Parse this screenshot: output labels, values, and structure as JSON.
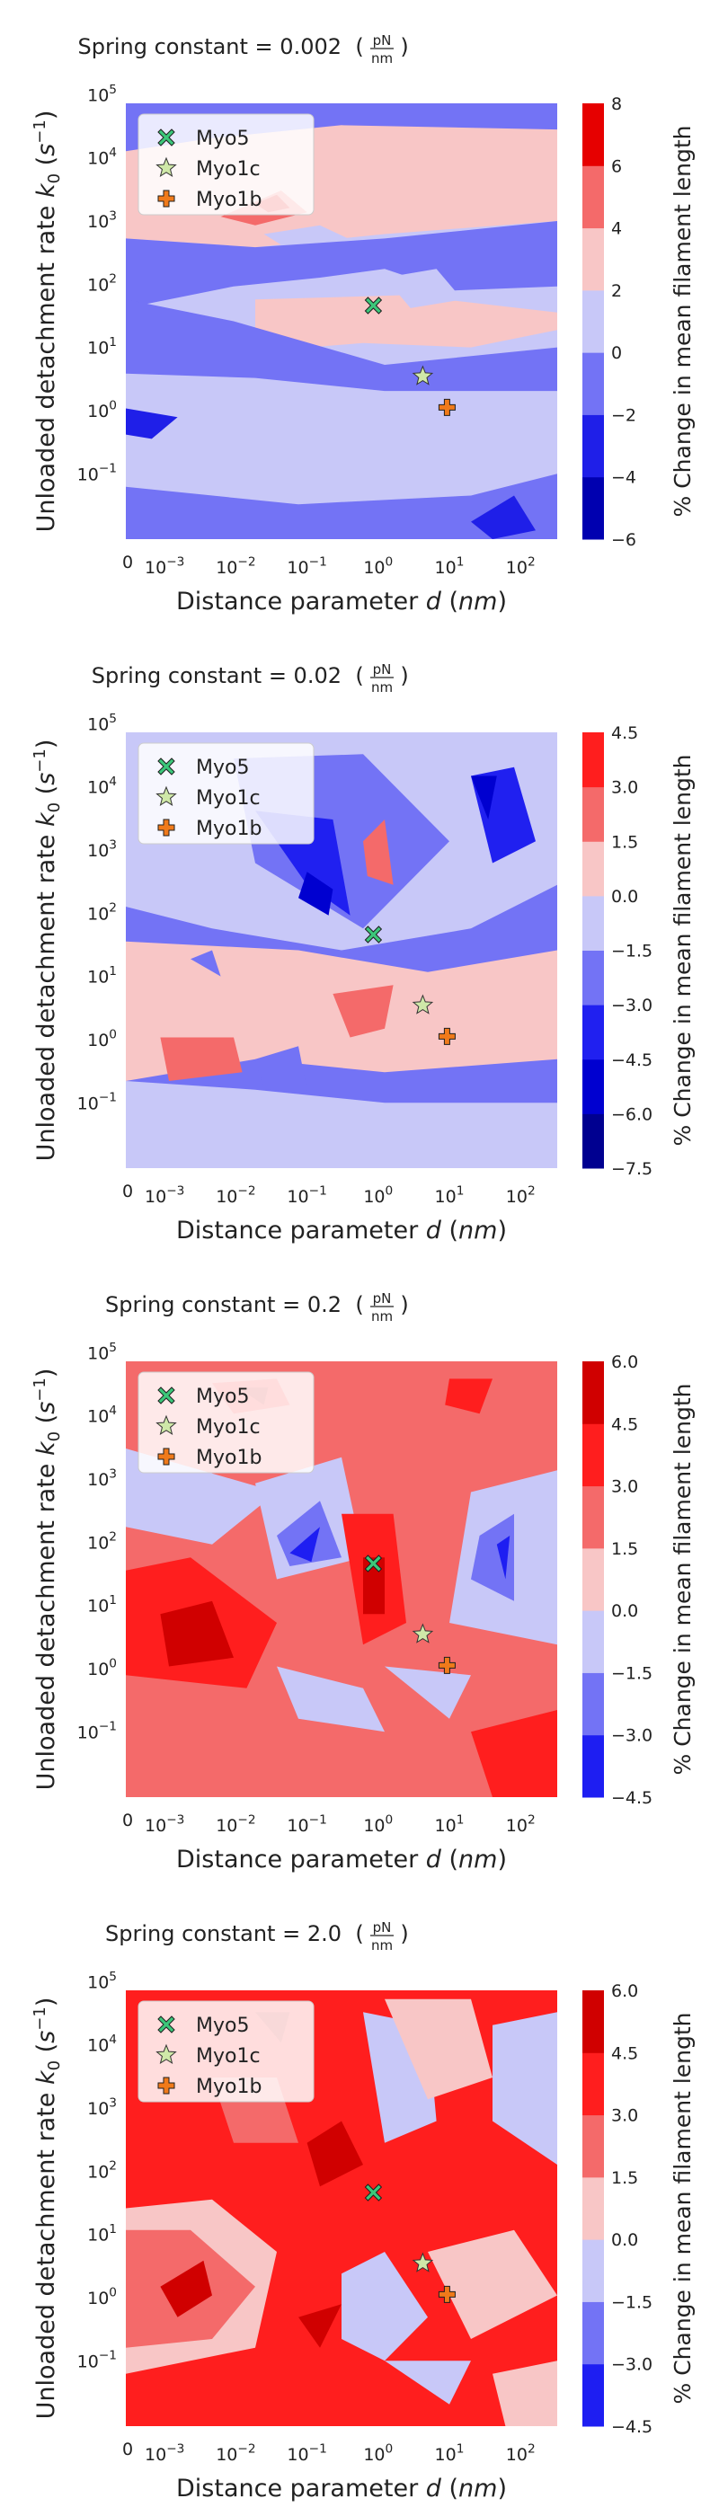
{
  "chart_data": [
    {
      "type": "contour",
      "title_main": "Spring constant = 0.002",
      "title_unit_num": "pN",
      "title_unit_den": "nm",
      "xlabel": "Distance parameter d (nm)",
      "ylabel": "Unloaded detachment rate k0 (s-1)",
      "x_ticks": [
        "0",
        "10-3",
        "10-2",
        "10-1",
        "100",
        "101",
        "102"
      ],
      "y_ticks": [
        "10-1",
        "100",
        "101",
        "102",
        "103",
        "104",
        "105"
      ],
      "colorbar_label": "% Change in mean filament length",
      "colorbar_levels": [
        -6,
        -4,
        -2,
        0,
        2,
        4,
        6,
        8
      ],
      "colorbar_colors": [
        "#0000b0",
        "#1f1fe8",
        "#7373f5",
        "#c8c8f8",
        "#f8c6c6",
        "#f46a6a",
        "#e60000"
      ],
      "legend": [
        {
          "label": "Myo5",
          "marker": "x",
          "color": "#3cc77a"
        },
        {
          "label": "Myo1c",
          "marker": "star",
          "color": "#cfe8a8"
        },
        {
          "label": "Myo1b",
          "marker": "plus",
          "color": "#f07a1a"
        }
      ],
      "points": [
        {
          "name": "Myo5",
          "d": 1.0,
          "k0": 70
        },
        {
          "name": "Myo1c",
          "d": 5.0,
          "k0": 5.5
        },
        {
          "name": "Myo1b",
          "d": 11,
          "k0": 1.8
        }
      ]
    },
    {
      "type": "contour",
      "title_main": "Spring constant = 0.02",
      "title_unit_num": "pN",
      "title_unit_den": "nm",
      "xlabel": "Distance parameter d (nm)",
      "ylabel": "Unloaded detachment rate k0 (s-1)",
      "x_ticks": [
        "0",
        "10-3",
        "10-2",
        "10-1",
        "100",
        "101",
        "102"
      ],
      "y_ticks": [
        "10-1",
        "100",
        "101",
        "102",
        "103",
        "104",
        "105"
      ],
      "colorbar_label": "% Change in mean filament length",
      "colorbar_levels": [
        -7.5,
        -6.0,
        -4.5,
        -3.0,
        -1.5,
        0.0,
        1.5,
        3.0,
        4.5
      ],
      "colorbar_colors": [
        "#000090",
        "#0000d0",
        "#2020f0",
        "#7373f5",
        "#c8c8f8",
        "#f8c6c6",
        "#f46a6a",
        "#ff1e1e"
      ],
      "legend": [
        {
          "label": "Myo5",
          "marker": "x",
          "color": "#3cc77a"
        },
        {
          "label": "Myo1c",
          "marker": "star",
          "color": "#cfe8a8"
        },
        {
          "label": "Myo1b",
          "marker": "plus",
          "color": "#f07a1a"
        }
      ],
      "points": [
        {
          "name": "Myo5",
          "d": 1.0,
          "k0": 70
        },
        {
          "name": "Myo1c",
          "d": 5.0,
          "k0": 5.5
        },
        {
          "name": "Myo1b",
          "d": 11,
          "k0": 1.8
        }
      ]
    },
    {
      "type": "contour",
      "title_main": "Spring constant = 0.2",
      "title_unit_num": "pN",
      "title_unit_den": "nm",
      "xlabel": "Distance parameter d (nm)",
      "ylabel": "Unloaded detachment rate k0 (s-1)",
      "x_ticks": [
        "0",
        "10-3",
        "10-2",
        "10-1",
        "100",
        "101",
        "102"
      ],
      "y_ticks": [
        "10-1",
        "100",
        "101",
        "102",
        "103",
        "104",
        "105"
      ],
      "colorbar_label": "% Change in mean filament length",
      "colorbar_levels": [
        -4.5,
        -3.0,
        -1.5,
        0.0,
        1.5,
        3.0,
        4.5,
        6.0
      ],
      "colorbar_colors": [
        "#1e1ef2",
        "#7373f5",
        "#c8c8f8",
        "#f8c6c6",
        "#f46a6a",
        "#ff1e1e",
        "#d00000"
      ],
      "legend": [
        {
          "label": "Myo5",
          "marker": "x",
          "color": "#3cc77a"
        },
        {
          "label": "Myo1c",
          "marker": "star",
          "color": "#cfe8a8"
        },
        {
          "label": "Myo1b",
          "marker": "plus",
          "color": "#f07a1a"
        }
      ],
      "points": [
        {
          "name": "Myo5",
          "d": 1.0,
          "k0": 70
        },
        {
          "name": "Myo1c",
          "d": 5.0,
          "k0": 5.5
        },
        {
          "name": "Myo1b",
          "d": 11,
          "k0": 1.8
        }
      ]
    },
    {
      "type": "contour",
      "title_main": "Spring constant = 2.0",
      "title_unit_num": "pN",
      "title_unit_den": "nm",
      "xlabel": "Distance parameter d (nm)",
      "ylabel": "Unloaded detachment rate k0 (s-1)",
      "x_ticks": [
        "0",
        "10-3",
        "10-2",
        "10-1",
        "100",
        "101",
        "102"
      ],
      "y_ticks": [
        "10-1",
        "100",
        "101",
        "102",
        "103",
        "104",
        "105"
      ],
      "colorbar_label": "% Change in mean filament length",
      "colorbar_levels": [
        -4.5,
        -3.0,
        -1.5,
        0.0,
        1.5,
        3.0,
        4.5,
        6.0
      ],
      "colorbar_colors": [
        "#1e1ef2",
        "#7373f5",
        "#c8c8f8",
        "#f8c6c6",
        "#f46a6a",
        "#ff1e1e",
        "#d00000"
      ],
      "legend": [
        {
          "label": "Myo5",
          "marker": "x",
          "color": "#3cc77a"
        },
        {
          "label": "Myo1c",
          "marker": "star",
          "color": "#cfe8a8"
        },
        {
          "label": "Myo1b",
          "marker": "plus",
          "color": "#f07a1a"
        }
      ],
      "points": [
        {
          "name": "Myo5",
          "d": 1.0,
          "k0": 70
        },
        {
          "name": "Myo1c",
          "d": 5.0,
          "k0": 5.5
        },
        {
          "name": "Myo1b",
          "d": 11,
          "k0": 1.8
        }
      ]
    }
  ]
}
